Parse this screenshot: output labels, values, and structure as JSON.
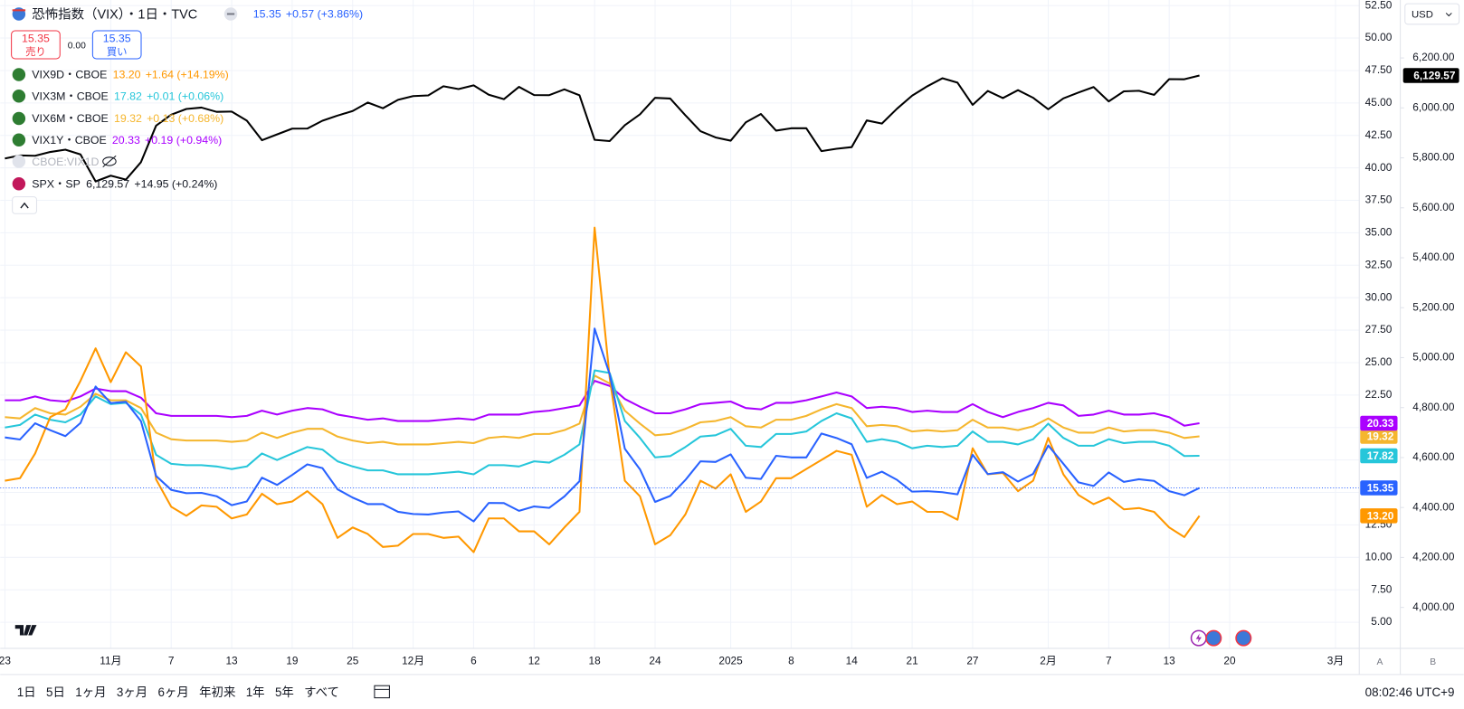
{
  "chart_data": {
    "type": "line",
    "categories": [
      "23",
      null,
      null,
      null,
      null,
      null,
      null,
      "11月",
      null,
      null,
      null,
      "7",
      null,
      null,
      null,
      "13",
      null,
      null,
      null,
      "19",
      null,
      null,
      null,
      "25",
      null,
      null,
      null,
      "12月",
      null,
      null,
      null,
      "6",
      null,
      null,
      null,
      "12",
      null,
      null,
      null,
      "18",
      null,
      null,
      null,
      "24",
      null,
      null,
      null,
      null,
      "2025",
      null,
      null,
      null,
      "8",
      null,
      null,
      null,
      "14",
      null,
      null,
      null,
      "21",
      null,
      null,
      null,
      "27",
      null,
      null,
      null,
      null,
      "2月",
      null,
      null,
      null,
      "7",
      null,
      null,
      null,
      "13",
      null,
      null,
      null,
      "20",
      null,
      null,
      null,
      null,
      null,
      null,
      "3月"
    ],
    "series": [
      {
        "name": "恐怖指数（VIX）",
        "color": "#2962ff",
        "last": "15.35",
        "change": "+0.57 (+3.86%)",
        "values": [
          19.24,
          19.08,
          20.33,
          19.8,
          19.34,
          20.35,
          23.16,
          21.88,
          21.98,
          20.49,
          16.27,
          15.2,
          14.94,
          14.97,
          14.71,
          14.02,
          14.31,
          16.14,
          15.58,
          16.35,
          17.16,
          16.87,
          15.24,
          14.6,
          14.1,
          14.1,
          13.51,
          13.34,
          13.3,
          13.45,
          13.54,
          12.77,
          14.19,
          14.18,
          13.58,
          13.92,
          13.81,
          14.69,
          15.87,
          27.62,
          24.09,
          18.36,
          16.78,
          14.27,
          14.73,
          15.95,
          17.4,
          17.35,
          17.93,
          16.13,
          16.04,
          17.82,
          17.7,
          17.7,
          19.54,
          19.19,
          18.71,
          16.12,
          16.6,
          15.97,
          15.06,
          15.1,
          15.02,
          14.85,
          17.9,
          16.41,
          16.56,
          15.84,
          16.43,
          18.62,
          17.21,
          15.77,
          15.5,
          16.54,
          15.81,
          16.02,
          15.89,
          15.1,
          14.78,
          15.35,
          null,
          null,
          null,
          null,
          null,
          null,
          null,
          null,
          null
        ]
      },
      {
        "name": "VIX9D・CBOE",
        "color": "#ff9800",
        "last": "13.20",
        "change": "+1.64 (+14.19%)",
        "values": [
          15.9,
          16.1,
          18.0,
          20.8,
          21.4,
          23.6,
          26.1,
          23.5,
          25.8,
          24.7,
          16.0,
          13.9,
          13.2,
          14.0,
          13.9,
          13.0,
          13.3,
          14.9,
          14.1,
          14.3,
          15.1,
          14.1,
          11.5,
          12.3,
          11.8,
          10.8,
          10.9,
          11.8,
          11.8,
          11.5,
          11.6,
          10.4,
          13.0,
          13.0,
          12.0,
          12.0,
          11.0,
          12.3,
          13.5,
          35.4,
          23.8,
          15.9,
          14.7,
          11.0,
          11.7,
          13.3,
          15.9,
          15.3,
          16.4,
          13.5,
          14.3,
          16.1,
          16.1,
          16.8,
          17.5,
          18.2,
          17.9,
          13.9,
          14.8,
          14.1,
          14.3,
          13.5,
          13.5,
          12.9,
          18.4,
          16.4,
          16.5,
          15.1,
          15.9,
          19.2,
          16.4,
          14.8,
          14.1,
          14.6,
          13.7,
          13.8,
          13.5,
          12.3,
          11.56,
          13.2,
          null,
          null,
          null,
          null,
          null,
          null,
          null,
          null,
          null
        ]
      },
      {
        "name": "VIX3M・CBOE",
        "color": "#26c6da",
        "last": "17.82",
        "change": "+0.01 (+0.06%)",
        "values": [
          20.0,
          20.2,
          21.0,
          20.6,
          20.4,
          21.0,
          22.4,
          21.8,
          21.9,
          21.0,
          17.9,
          17.2,
          17.1,
          17.1,
          17.0,
          16.8,
          17.0,
          18.0,
          17.5,
          18.0,
          18.5,
          18.3,
          17.4,
          17.0,
          16.7,
          16.7,
          16.4,
          16.4,
          16.4,
          16.5,
          16.6,
          16.4,
          17.1,
          17.1,
          17.0,
          17.4,
          17.3,
          17.9,
          18.7,
          24.4,
          24.2,
          20.5,
          19.2,
          17.7,
          17.8,
          18.5,
          19.3,
          19.4,
          19.9,
          18.6,
          18.5,
          19.5,
          19.5,
          19.7,
          20.5,
          21.1,
          20.7,
          18.9,
          19.1,
          18.9,
          18.4,
          18.6,
          18.5,
          18.6,
          19.7,
          18.9,
          18.9,
          18.7,
          19.1,
          20.3,
          19.2,
          18.6,
          18.6,
          19.1,
          18.8,
          18.9,
          18.9,
          18.6,
          17.81,
          17.82,
          null,
          null,
          null,
          null,
          null,
          null,
          null,
          null,
          null
        ]
      },
      {
        "name": "VIX6M・CBOE",
        "color": "#f5b62e",
        "last": "19.32",
        "change": "+0.13 (+0.68%)",
        "values": [
          20.8,
          20.7,
          21.5,
          21.1,
          21.0,
          21.6,
          22.6,
          22.1,
          22.1,
          21.5,
          19.6,
          19.1,
          19.0,
          19.0,
          19.0,
          18.9,
          19.0,
          19.6,
          19.2,
          19.6,
          19.9,
          19.9,
          19.3,
          19.0,
          18.8,
          18.9,
          18.7,
          18.7,
          18.7,
          18.8,
          18.9,
          18.8,
          19.2,
          19.3,
          19.2,
          19.5,
          19.5,
          19.8,
          20.3,
          24.0,
          23.4,
          21.3,
          20.3,
          19.4,
          19.5,
          19.9,
          20.4,
          20.5,
          20.8,
          20.1,
          20.0,
          20.6,
          20.6,
          20.9,
          21.4,
          21.8,
          21.5,
          20.1,
          20.2,
          20.1,
          19.7,
          19.8,
          19.7,
          19.8,
          20.6,
          20.0,
          20.0,
          19.8,
          20.1,
          20.7,
          20.0,
          19.6,
          19.6,
          20.0,
          19.7,
          19.8,
          19.8,
          19.6,
          19.19,
          19.32,
          null,
          null,
          null,
          null,
          null,
          null,
          null,
          null,
          null
        ]
      },
      {
        "name": "VIX1Y・CBOE",
        "color": "#aa00ff",
        "last": "20.33",
        "change": "+0.19 (+0.94%)",
        "values": [
          22.1,
          22.1,
          22.4,
          22.1,
          22.0,
          22.4,
          23.0,
          22.8,
          22.8,
          22.3,
          21.1,
          20.9,
          20.9,
          20.9,
          20.9,
          20.8,
          20.9,
          21.3,
          21.0,
          21.3,
          21.5,
          21.4,
          21.0,
          20.8,
          20.6,
          20.7,
          20.5,
          20.5,
          20.5,
          20.6,
          20.7,
          20.6,
          21.0,
          21.0,
          21.0,
          21.2,
          21.3,
          21.5,
          21.7,
          23.6,
          23.2,
          22.2,
          21.6,
          21.1,
          21.1,
          21.4,
          21.8,
          21.9,
          22.0,
          21.5,
          21.4,
          21.9,
          21.9,
          22.1,
          22.4,
          22.7,
          22.4,
          21.5,
          21.6,
          21.5,
          21.2,
          21.3,
          21.2,
          21.2,
          21.8,
          21.2,
          20.8,
          21.2,
          21.5,
          21.9,
          21.7,
          20.9,
          21.0,
          21.3,
          21.0,
          21.0,
          21.1,
          20.8,
          20.14,
          20.33,
          null,
          null,
          null,
          null,
          null,
          null,
          null,
          null,
          null
        ]
      },
      {
        "name": "SPX・SP",
        "color": "#000000",
        "axis": "y2",
        "last": "6,129.57",
        "change": "+14.95 (+0.24%)",
        "values": [
          5797.42,
          5809.86,
          5808.12,
          5823.52,
          5832.92,
          5813.67,
          5705.45,
          5728.8,
          5712.69,
          5782.76,
          5929.04,
          5973.1,
          5995.54,
          6001.35,
          5983.99,
          5985.38,
          5949.17,
          5870.62,
          5893.62,
          5916.98,
          5917.11,
          5948.71,
          5969.34,
          5987.37,
          6021.63,
          5998.74,
          6032.38,
          6047.15,
          6049.88,
          6086.49,
          6075.11,
          6090.27,
          6052.85,
          6034.91,
          6084.19,
          6051.25,
          6051.09,
          6074.08,
          6050.61,
          5872.16,
          5867.08,
          5930.85,
          5974.07,
          6040.04,
          6037.59,
          5970.84,
          5906.94,
          5881.63,
          5868.55,
          5942.47,
          5975.38,
          5909.03,
          5918.25,
          5918.25,
          5827.04,
          5836.22,
          5842.91,
          5949.91,
          5937.34,
          5996.66,
          6049.24,
          6086.37,
          6118.71,
          6101.24,
          6012.28,
          6067.7,
          6039.31,
          6071.17,
          6040.53,
          5994.57,
          6037.88,
          6061.48,
          6083.57,
          6025.99,
          6066.44,
          6068.5,
          6051.97,
          6115.07,
          6114.62,
          6129.57,
          null,
          null,
          null,
          null,
          null,
          null,
          null,
          null,
          null
        ]
      }
    ],
    "ylim": [
      2.99,
      52.93
    ],
    "yticks": [
      {
        "value": 5,
        "label": "5.00"
      },
      {
        "value": 7.5,
        "label": "7.50"
      },
      {
        "value": 10,
        "label": "10.00"
      },
      {
        "value": 12.5,
        "label": "12.50"
      },
      {
        "value": 15,
        "label": "15.00"
      },
      {
        "value": 17.5,
        "label": "17.50"
      },
      {
        "value": 20,
        "label": "20.00"
      },
      {
        "value": 22.5,
        "label": "22.50"
      },
      {
        "value": 25,
        "label": "25.00"
      },
      {
        "value": 27.5,
        "label": "27.50"
      },
      {
        "value": 30,
        "label": "30.00"
      },
      {
        "value": 32.5,
        "label": "32.50"
      },
      {
        "value": 35,
        "label": "35.00"
      },
      {
        "value": 37.5,
        "label": "37.50"
      },
      {
        "value": 40,
        "label": "40.00"
      },
      {
        "value": 42.5,
        "label": "42.50"
      },
      {
        "value": 45,
        "label": "45.00"
      },
      {
        "value": 47.5,
        "label": "47.50"
      },
      {
        "value": 50,
        "label": "50.00"
      },
      {
        "value": 52.5,
        "label": "52.50"
      }
    ],
    "y2lim": [
      3836,
      6432
    ],
    "y2ticks": [
      {
        "value": 4000,
        "label": "4,000.00"
      },
      {
        "value": 4200,
        "label": "4,200.00"
      },
      {
        "value": 4400,
        "label": "4,400.00"
      },
      {
        "value": 4600,
        "label": "4,600.00"
      },
      {
        "value": 4800,
        "label": "4,800.00"
      },
      {
        "value": 5000,
        "label": "5,000.00"
      },
      {
        "value": 5200,
        "label": "5,200.00"
      },
      {
        "value": 5400,
        "label": "5,400.00"
      },
      {
        "value": 5600,
        "label": "5,600.00"
      },
      {
        "value": 5800,
        "label": "5,800.00"
      },
      {
        "value": 6000,
        "label": "6,000.00"
      },
      {
        "value": 6200,
        "label": "6,200.00"
      }
    ],
    "grid": true
  },
  "header": {
    "suffix": "・1日・TVC",
    "bid": "15.35",
    "sell": "売り",
    "spread": "0.00",
    "ask": "15.35",
    "buy": "買い",
    "currency": "USD",
    "hidden_series": "CBOE:VIX1D"
  },
  "scale_buttons": [
    "A",
    "B"
  ],
  "toolbar": {
    "ranges": [
      "1日",
      "5日",
      "1ヶ月",
      "3ヶ月",
      "6ヶ月",
      "年初来",
      "1年",
      "5年",
      "すべて"
    ],
    "clock": "08:02:46 UTC+9"
  }
}
